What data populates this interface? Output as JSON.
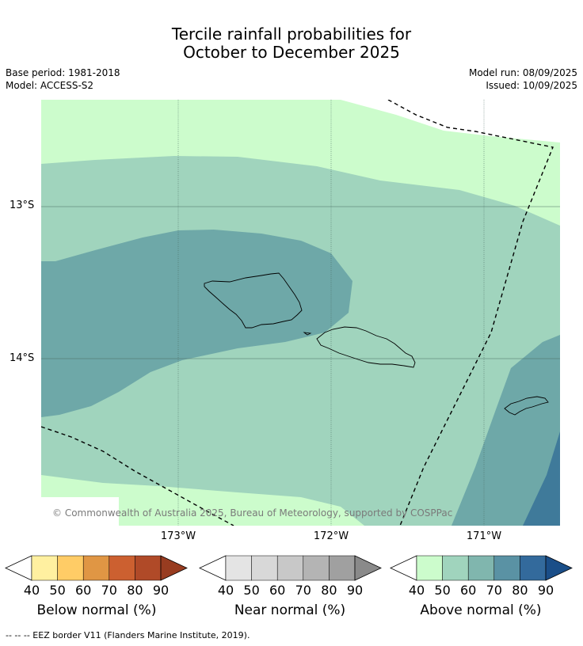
{
  "title_line1": "Tercile rainfall probabilities for",
  "title_line2": "October to December 2025",
  "meta": {
    "base_period": "Base period: 1981-2018",
    "model": "Model: ACCESS-S2",
    "model_run": "Model run: 08/09/2025",
    "issued": "Issued: 10/09/2025"
  },
  "map": {
    "lat_labels": [
      "13°S",
      "14°S"
    ],
    "lon_labels": [
      "173°W",
      "172°W",
      "171°W"
    ],
    "copyright": "© Commonwealth of Australia 2025, Bureau of Meteorology, supported by COSPPac",
    "fill_colors": {
      "above_40": "#ccfccc",
      "above_50": "#a0d4bd",
      "above_60": "#6ea8a8",
      "above_70": "#4a8aa0",
      "above_80": "#3d7596"
    }
  },
  "colorbars": [
    {
      "name": "below",
      "title": "Below normal (%)",
      "ticks": [
        "40",
        "50",
        "60",
        "70",
        "80",
        "90"
      ],
      "colors": [
        "#fff0a0",
        "#ffcc66",
        "#e09644",
        "#cc6030",
        "#b04a28",
        "#983c20"
      ]
    },
    {
      "name": "near",
      "title": "Near normal (%)",
      "ticks": [
        "40",
        "50",
        "60",
        "70",
        "80",
        "90"
      ],
      "colors": [
        "#e4e4e4",
        "#d8d8d8",
        "#c8c8c8",
        "#b4b4b4",
        "#a0a0a0",
        "#8a8a8a"
      ]
    },
    {
      "name": "above",
      "title": "Above normal (%)",
      "ticks": [
        "40",
        "50",
        "60",
        "70",
        "80",
        "90"
      ],
      "colors": [
        "#ccfccc",
        "#a0d4bd",
        "#80b6ae",
        "#5a92a4",
        "#336a9c",
        "#1a4e88"
      ]
    }
  ],
  "footnote": "-- -- -- EEZ border V11 (Flanders Marine Institute, 2019)."
}
